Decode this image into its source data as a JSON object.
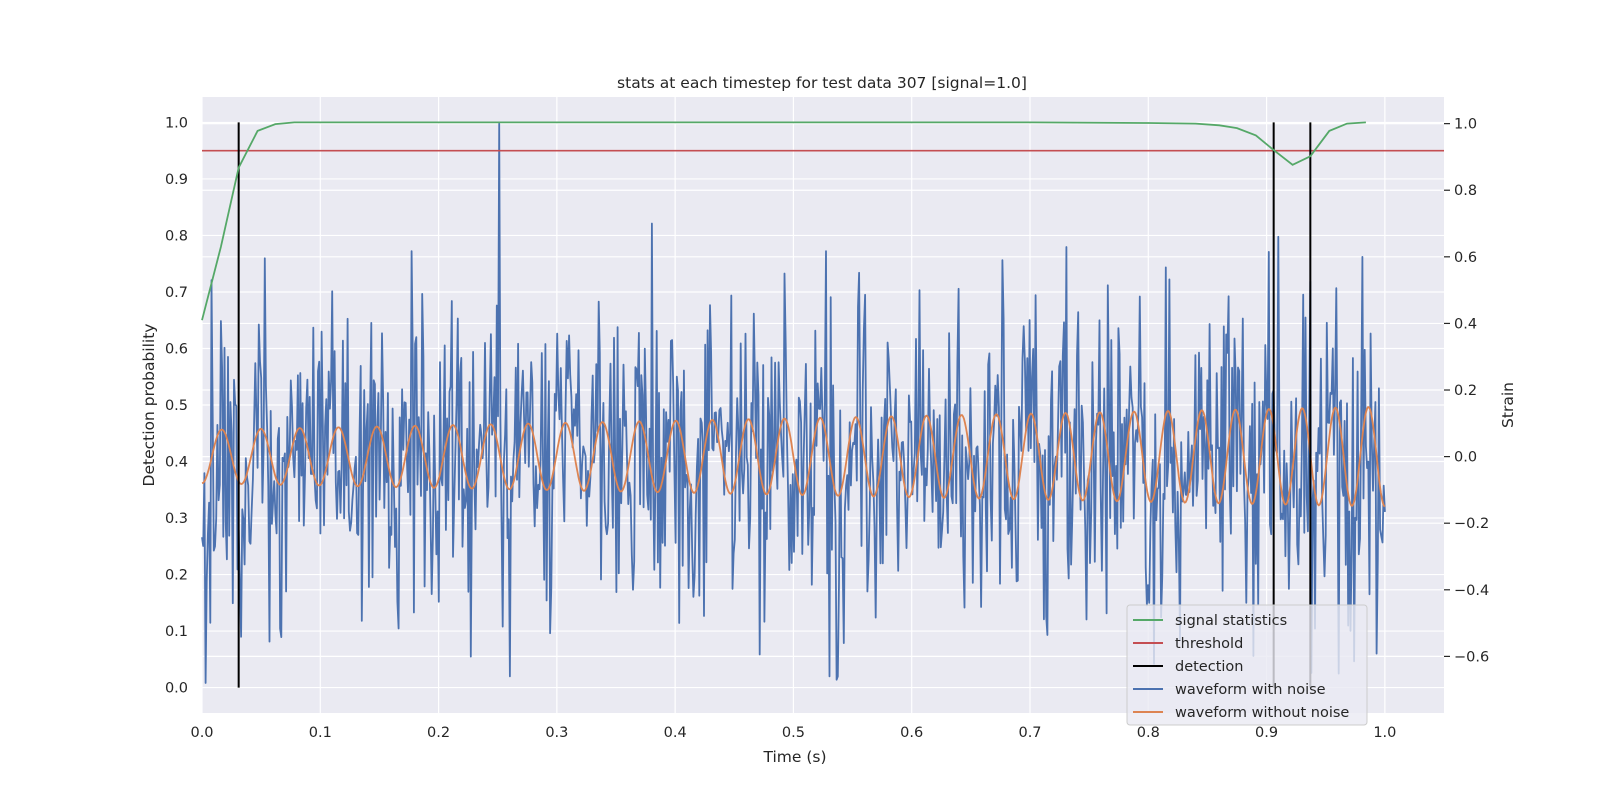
{
  "chart_data": {
    "type": "line",
    "title": "stats at each timestep for test data 307 [signal=1.0]",
    "xlabel": "Time (s)",
    "ylabel_left": "Detection probability",
    "ylabel_right": "Strain",
    "xlim": [
      0.0,
      1.05
    ],
    "ylim_left": [
      -0.045,
      1.045
    ],
    "ylim_right": [
      -0.77,
      1.08
    ],
    "xticks": [
      "0.0",
      "0.1",
      "0.2",
      "0.3",
      "0.4",
      "0.5",
      "0.6",
      "0.7",
      "0.8",
      "0.9",
      "1.0"
    ],
    "yticks_left": [
      "0.0",
      "0.1",
      "0.2",
      "0.3",
      "0.4",
      "0.5",
      "0.6",
      "0.7",
      "0.8",
      "0.9",
      "1.0"
    ],
    "yticks_right": [
      "−0.6",
      "−0.4",
      "−0.2",
      "0.0",
      "0.2",
      "0.4",
      "0.6",
      "0.8",
      "1.0"
    ],
    "grid": true,
    "legend_position": "bottom-right",
    "series": [
      {
        "name": "signal statistics",
        "axis": "left",
        "color": "#55a868",
        "x": [
          0.0,
          0.016,
          0.031,
          0.047,
          0.062,
          0.078,
          0.1,
          0.2,
          0.3,
          0.4,
          0.5,
          0.6,
          0.7,
          0.8,
          0.84,
          0.86,
          0.875,
          0.891,
          0.906,
          0.922,
          0.937,
          0.953,
          0.968,
          0.984
        ],
        "y": [
          0.65,
          0.78,
          0.92,
          0.985,
          0.997,
          1.0,
          1.0,
          1.0,
          1.0,
          1.0,
          1.0,
          1.0,
          1.0,
          0.999,
          0.998,
          0.995,
          0.99,
          0.977,
          0.951,
          0.925,
          0.94,
          0.985,
          0.998,
          1.0
        ]
      },
      {
        "name": "threshold",
        "axis": "left",
        "color": "#c44e52",
        "value": 0.95
      },
      {
        "name": "detection",
        "axis": "left",
        "color": "#000000",
        "x": [
          0.031,
          0.906,
          0.937
        ],
        "ymin": 0.0,
        "ymax": 1.0
      },
      {
        "name": "waveform with noise",
        "axis": "right",
        "color": "#4c72b0",
        "description": "noisy strain, approx. 1000 samples over 0–1 s, std ≈ 0.25, min ≈ -0.67, max ≈ 1.0",
        "peaks": [
          {
            "x": 0.0035,
            "y": -0.68
          },
          {
            "x": 0.008,
            "y": 0.53
          },
          {
            "x": 0.251,
            "y": 1.0
          },
          {
            "x": 0.38,
            "y": 0.7
          },
          {
            "x": 0.537,
            "y": -0.67
          },
          {
            "x": 0.91,
            "y": 0.66
          },
          {
            "x": 0.938,
            "y": -0.65
          }
        ]
      },
      {
        "name": "waveform without noise",
        "axis": "right",
        "color": "#dd8452",
        "description": "chirp sinusoid",
        "amplitude_start": 0.08,
        "amplitude_end": 0.15,
        "freq_start_hz": 30,
        "freq_end_hz": 36
      }
    ]
  }
}
